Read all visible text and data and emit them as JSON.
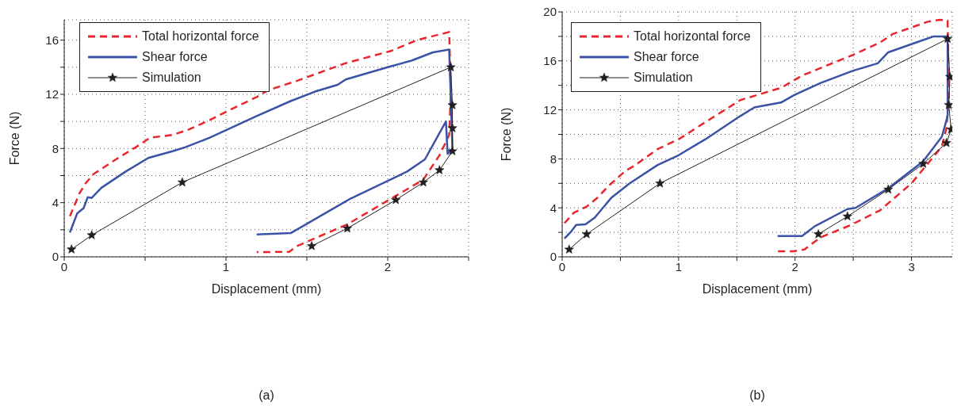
{
  "chart_data": [
    {
      "type": "line",
      "xlabel": "Displacement (mm)",
      "ylabel": "Force (N)",
      "annotations": [
        "(a)"
      ],
      "legend": "top left",
      "grid": true,
      "xlim": [
        0,
        2.5
      ],
      "xticks": [
        0,
        {
          "value": 0.5,
          "label": null
        },
        1,
        {
          "value": 1.5,
          "label": null
        },
        2,
        {
          "value": 2.5,
          "label": null
        }
      ],
      "ylim": [
        0,
        17.5
      ],
      "yticks": [
        0,
        {
          "value": 2,
          "label": null
        },
        4,
        {
          "value": 6,
          "label": null
        },
        8,
        {
          "value": 10,
          "label": null
        },
        12,
        {
          "value": 14,
          "label": null
        },
        16
      ],
      "series": [
        {
          "name": "Total horizontal force",
          "color": "#e8262b",
          "line_style": "dashed",
          "marker": "none",
          "x": [
            0.035,
            0.095,
            0.13,
            0.18,
            0.32,
            0.47,
            0.53,
            0.67,
            0.77,
            0.9,
            1.05,
            1.19,
            1.26,
            1.44,
            1.74,
            2.02,
            2.18,
            2.38,
            2.39,
            2.38,
            2.32,
            2.22,
            2.05,
            1.75,
            1.44,
            1.39,
            1.19
          ],
          "values": [
            3.0,
            4.7,
            5.4,
            6.1,
            7.2,
            8.3,
            8.8,
            9.0,
            9.4,
            10.1,
            11.0,
            11.8,
            12.3,
            13.0,
            14.3,
            15.2,
            16.0,
            16.6,
            12.0,
            9.0,
            7.5,
            5.7,
            4.5,
            2.4,
            0.8,
            0.37,
            0.35
          ]
        },
        {
          "name": "Shear force",
          "color": "#3a53a4",
          "line_style": "solid",
          "marker": "none",
          "x": [
            0.035,
            0.08,
            0.12,
            0.145,
            0.17,
            0.23,
            0.38,
            0.52,
            0.67,
            0.75,
            0.9,
            1.19,
            1.4,
            1.55,
            1.69,
            1.74,
            2.0,
            2.15,
            2.28,
            2.38,
            2.4,
            2.37,
            2.36,
            2.23,
            2.12,
            1.77,
            1.4,
            1.19
          ],
          "values": [
            1.8,
            3.2,
            3.6,
            4.4,
            4.35,
            5.1,
            6.3,
            7.3,
            7.8,
            8.1,
            8.8,
            10.4,
            11.5,
            12.2,
            12.7,
            13.1,
            14.0,
            14.5,
            15.1,
            15.3,
            8.0,
            7.6,
            10.0,
            7.2,
            6.3,
            4.3,
            1.75,
            1.65
          ]
        },
        {
          "name": "Simulation",
          "color": "#231f20",
          "line_style": "solid",
          "marker": "star",
          "x": [
            0.045,
            0.17,
            0.73,
            2.39,
            2.4,
            2.4,
            2.4,
            2.32,
            2.22,
            2.05,
            1.75,
            1.53
          ],
          "values": [
            0.55,
            1.6,
            5.5,
            14.0,
            11.2,
            9.5,
            7.8,
            6.4,
            5.5,
            4.2,
            2.1,
            0.8
          ]
        }
      ]
    },
    {
      "type": "line",
      "xlabel": "Displacement (mm)",
      "ylabel": "Force (N)",
      "annotations": [
        "(b)"
      ],
      "legend": "top left",
      "grid": true,
      "xlim": [
        0,
        3.35
      ],
      "xticks": [
        0,
        {
          "value": 0.5,
          "label": null
        },
        1,
        {
          "value": 1.5,
          "label": null
        },
        2,
        {
          "value": 2.5,
          "label": null
        },
        3
      ],
      "ylim": [
        0,
        20
      ],
      "yticks": [
        0,
        {
          "value": 2,
          "label": null
        },
        4,
        {
          "value": 6,
          "label": null
        },
        8,
        {
          "value": 10,
          "label": null
        },
        12,
        {
          "value": 14,
          "label": null
        },
        16,
        {
          "value": 18,
          "label": null
        },
        20
      ],
      "series": [
        {
          "name": "Total horizontal force",
          "color": "#e8262b",
          "line_style": "dashed",
          "marker": "none",
          "x": [
            0.02,
            0.1,
            0.21,
            0.3,
            0.4,
            0.54,
            0.63,
            0.82,
            1.0,
            1.23,
            1.53,
            1.88,
            2.06,
            2.5,
            2.73,
            2.84,
            3.14,
            3.24,
            3.31,
            3.32,
            3.3,
            3.26,
            3.0,
            2.73,
            2.48,
            2.22,
            2.08,
            1.99,
            1.85
          ],
          "values": [
            2.75,
            3.6,
            4.1,
            4.8,
            5.8,
            7.0,
            7.5,
            8.8,
            9.6,
            11.0,
            12.8,
            13.8,
            14.8,
            16.5,
            17.5,
            18.2,
            19.2,
            19.35,
            19.3,
            13.0,
            10.5,
            9.0,
            6.0,
            3.8,
            2.6,
            1.6,
            0.6,
            0.45,
            0.45
          ]
        },
        {
          "name": "Shear force",
          "color": "#3a53a4",
          "line_style": "solid",
          "marker": "none",
          "x": [
            0.02,
            0.08,
            0.12,
            0.2,
            0.28,
            0.42,
            0.58,
            0.82,
            1.0,
            1.23,
            1.53,
            1.65,
            1.88,
            1.99,
            2.22,
            2.5,
            2.71,
            2.8,
            3.1,
            3.19,
            3.31,
            3.31,
            3.26,
            3.1,
            2.8,
            2.52,
            2.45,
            2.17,
            2.06,
            1.85
          ],
          "values": [
            1.5,
            2.1,
            2.6,
            2.65,
            3.2,
            4.8,
            6.0,
            7.5,
            8.3,
            9.6,
            11.5,
            12.2,
            12.6,
            13.2,
            14.2,
            15.2,
            15.8,
            16.7,
            17.7,
            18.0,
            18.0,
            11.5,
            9.8,
            7.8,
            5.6,
            4.0,
            3.9,
            2.5,
            1.7,
            1.7
          ]
        },
        {
          "name": "Simulation",
          "color": "#231f20",
          "line_style": "solid",
          "marker": "star",
          "x": [
            0.06,
            0.21,
            0.84,
            3.31,
            3.33,
            3.32,
            3.34,
            3.3,
            3.1,
            2.8,
            2.45,
            2.2
          ],
          "values": [
            0.6,
            1.85,
            6.0,
            17.8,
            14.7,
            12.4,
            10.4,
            9.3,
            7.6,
            5.5,
            3.3,
            1.85
          ]
        }
      ]
    }
  ]
}
